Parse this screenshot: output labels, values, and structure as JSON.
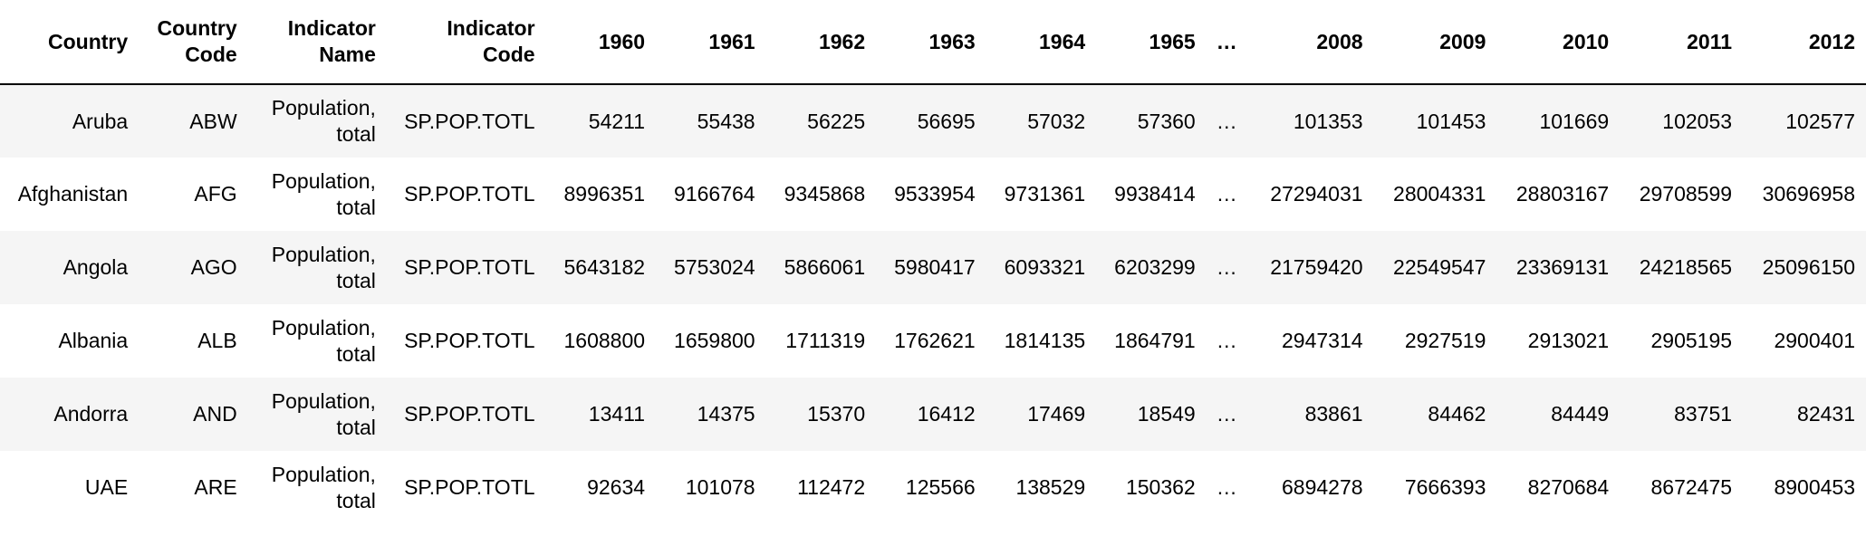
{
  "table": {
    "columns": [
      "Country",
      "Country Code",
      "Indicator Name",
      "Indicator Code",
      "1960",
      "1961",
      "1962",
      "1963",
      "1964",
      "1965",
      "…",
      "2008",
      "2009",
      "2010",
      "2011",
      "2012"
    ],
    "rows": [
      [
        "Aruba",
        "ABW",
        "Population, total",
        "SP.POP.TOTL",
        "54211",
        "55438",
        "56225",
        "56695",
        "57032",
        "57360",
        "…",
        "101353",
        "101453",
        "101669",
        "102053",
        "102577"
      ],
      [
        "Afghanistan",
        "AFG",
        "Population, total",
        "SP.POP.TOTL",
        "8996351",
        "9166764",
        "9345868",
        "9533954",
        "9731361",
        "9938414",
        "…",
        "27294031",
        "28004331",
        "28803167",
        "29708599",
        "30696958"
      ],
      [
        "Angola",
        "AGO",
        "Population, total",
        "SP.POP.TOTL",
        "5643182",
        "5753024",
        "5866061",
        "5980417",
        "6093321",
        "6203299",
        "…",
        "21759420",
        "22549547",
        "23369131",
        "24218565",
        "25096150"
      ],
      [
        "Albania",
        "ALB",
        "Population, total",
        "SP.POP.TOTL",
        "1608800",
        "1659800",
        "1711319",
        "1762621",
        "1814135",
        "1864791",
        "…",
        "2947314",
        "2927519",
        "2913021",
        "2905195",
        "2900401"
      ],
      [
        "Andorra",
        "AND",
        "Population, total",
        "SP.POP.TOTL",
        "13411",
        "14375",
        "15370",
        "16412",
        "17469",
        "18549",
        "…",
        "83861",
        "84462",
        "84449",
        "83751",
        "82431"
      ],
      [
        "UAE",
        "ARE",
        "Population, total",
        "SP.POP.TOTL",
        "92634",
        "101078",
        "112472",
        "125566",
        "138529",
        "150362",
        "…",
        "6894278",
        "7666393",
        "8270684",
        "8672475",
        "8900453"
      ]
    ]
  }
}
